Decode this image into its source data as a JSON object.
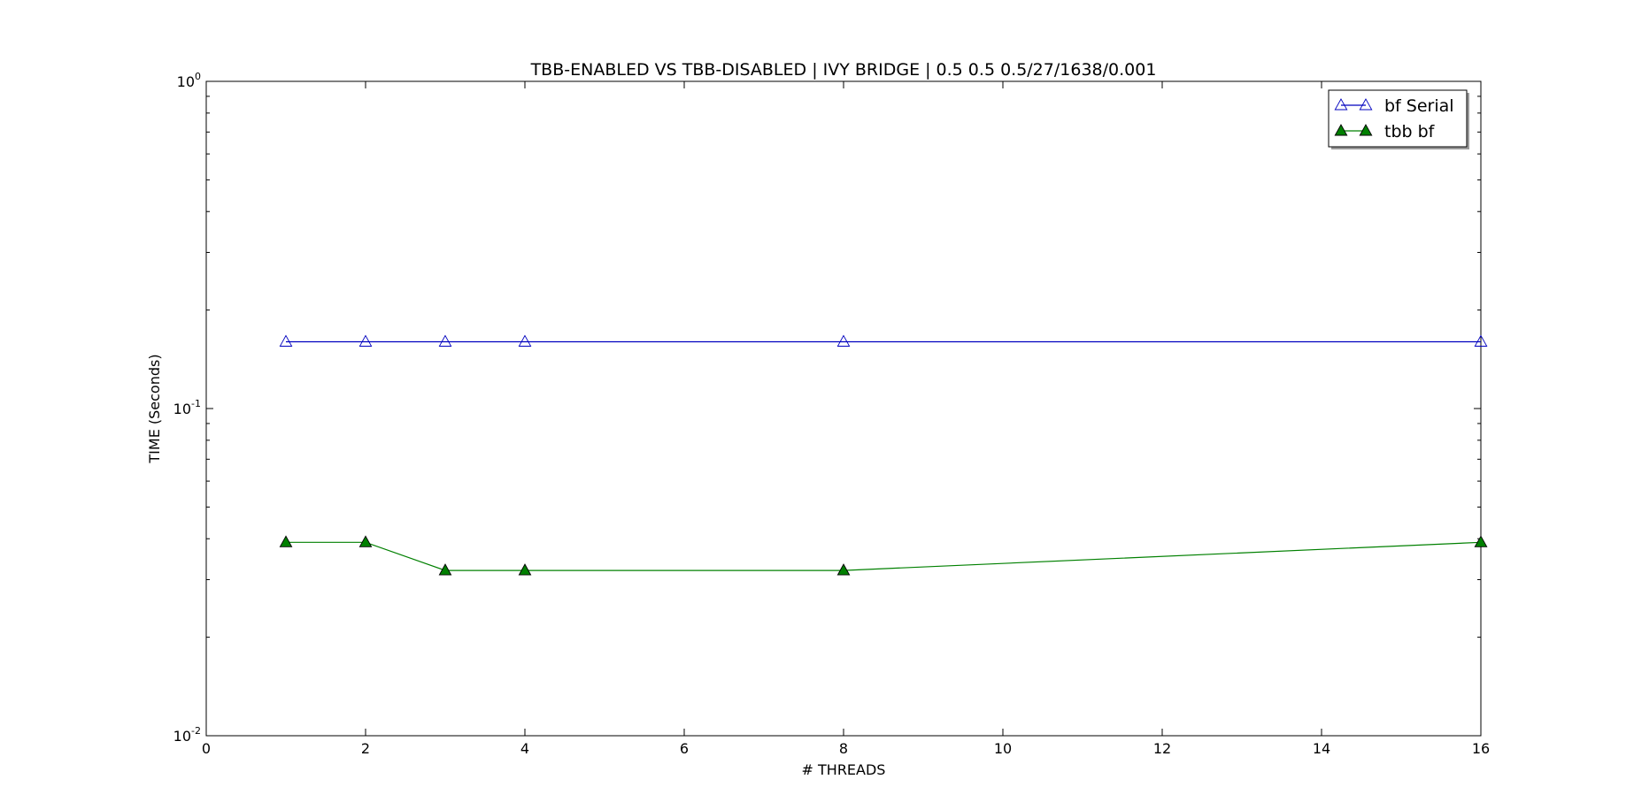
{
  "chart_data": {
    "type": "line",
    "title": "TBB-ENABLED VS TBB-DISABLED | IVY BRIDGE | 0.5 0.5 0.5/27/1638/0.001",
    "xlabel": "# THREADS",
    "ylabel": "TIME (Seconds)",
    "xlim": [
      0,
      16
    ],
    "ylim": [
      0.01,
      1
    ],
    "yscale": "log",
    "grid": false,
    "legend_position": "top-right",
    "x_ticks": [
      0,
      2,
      4,
      6,
      8,
      10,
      12,
      14,
      16
    ],
    "y_ticks": [
      {
        "value": 1,
        "base": "10",
        "exp": "0"
      },
      {
        "value": 0.1,
        "base": "10",
        "exp": "-1"
      },
      {
        "value": 0.01,
        "base": "10",
        "exp": "-2"
      }
    ],
    "x": [
      1,
      2,
      3,
      4,
      8,
      16
    ],
    "series": [
      {
        "name": "bf Serial",
        "color": "#0000bf",
        "marker": "triangle-open",
        "values": [
          0.16,
          0.16,
          0.16,
          0.16,
          0.16,
          0.16
        ]
      },
      {
        "name": "tbb bf",
        "color": "#008000",
        "marker": "triangle-filled",
        "values": [
          0.039,
          0.039,
          0.032,
          0.032,
          0.032,
          0.039
        ]
      }
    ]
  }
}
